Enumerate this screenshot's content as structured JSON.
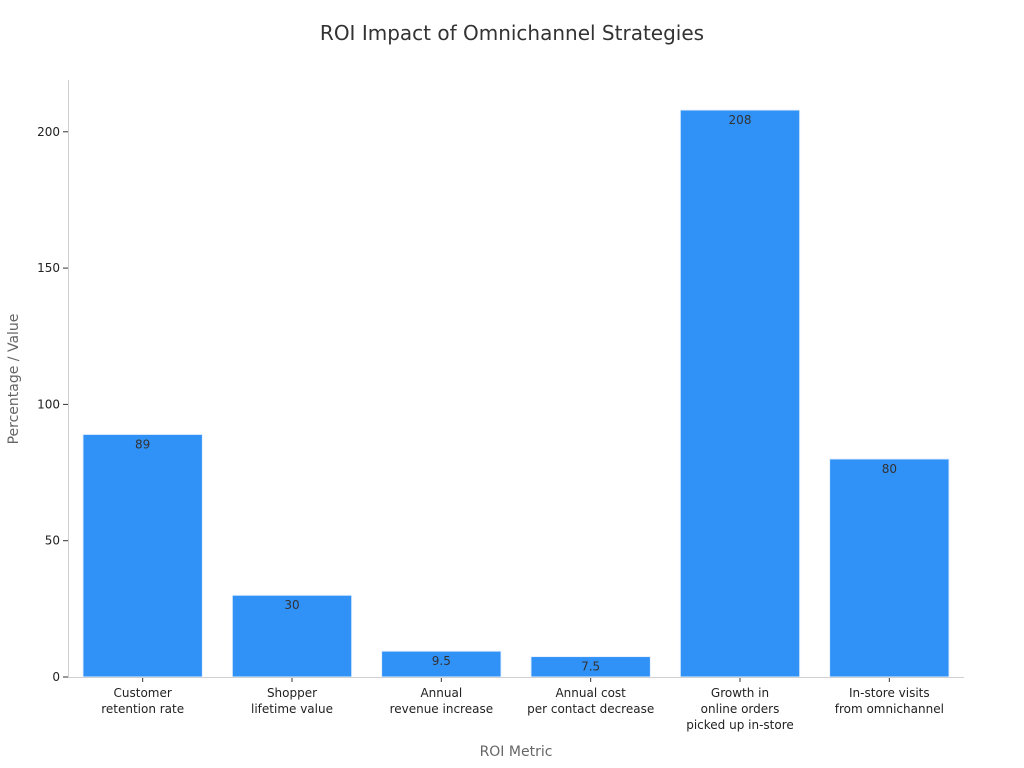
{
  "chart_data": {
    "type": "bar",
    "title": "ROI Impact of Omnichannel Strategies",
    "xlabel": "ROI Metric",
    "ylabel": "Percentage / Value",
    "categories": [
      [
        "Customer",
        "retention rate"
      ],
      [
        "Shopper",
        "lifetime value"
      ],
      [
        "Annual",
        "revenue increase"
      ],
      [
        "Annual cost",
        "per contact decrease"
      ],
      [
        "Growth in",
        "online orders",
        "picked up in-store"
      ],
      [
        "In-store visits",
        "from omnichannel"
      ]
    ],
    "values": [
      89,
      30,
      9.5,
      7.5,
      208,
      80
    ],
    "data_labels": [
      "89",
      "30",
      "9.5",
      "7.5",
      "208",
      "80"
    ],
    "yticks": [
      0,
      50,
      100,
      150,
      200
    ],
    "ylim": [
      0,
      219
    ],
    "bar_color": "#3091f7",
    "grid": false,
    "legend": "none"
  }
}
